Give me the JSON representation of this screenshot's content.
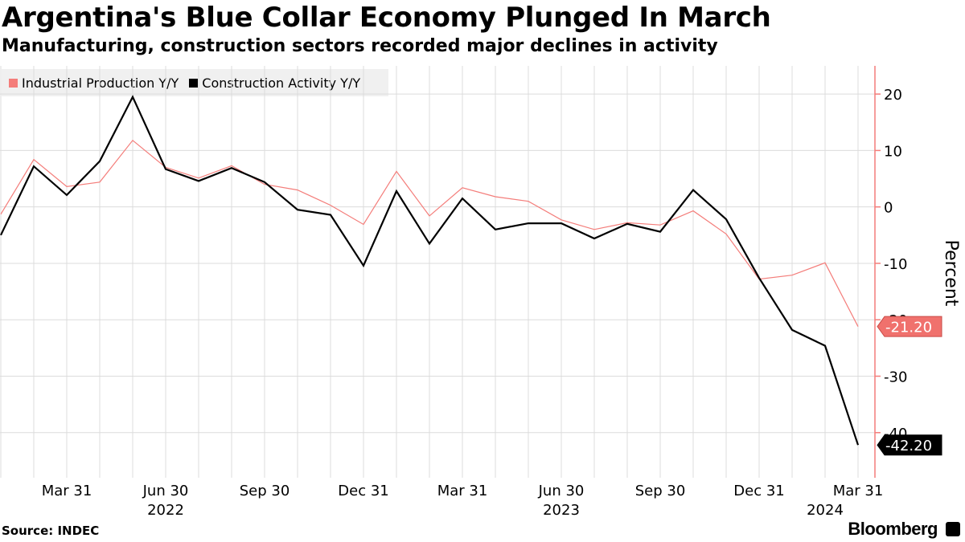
{
  "header": {
    "title": "Argentina's Blue Collar Economy Plunged In March",
    "subtitle": "Manufacturing, construction sectors recorded major declines in activity"
  },
  "footer": {
    "source": "Source: INDEC",
    "brand": "Bloomberg"
  },
  "colors": {
    "industrial": "#f47d7a",
    "construction": "#000000",
    "grid": "#dcdcdc",
    "axis": "#f47d7a"
  },
  "chart_data": {
    "type": "line",
    "title": "Argentina's Blue Collar Economy Plunged In March",
    "ylabel": "Percent",
    "xlabel": "",
    "ylim": [
      -48,
      25
    ],
    "yticks": [
      20,
      10,
      0,
      -10,
      -20,
      -30,
      -40
    ],
    "grid": true,
    "legend_position": "top-left",
    "x": [
      "2022-01",
      "2022-02",
      "2022-03",
      "2022-04",
      "2022-05",
      "2022-06",
      "2022-07",
      "2022-08",
      "2022-09",
      "2022-10",
      "2022-11",
      "2022-12",
      "2023-01",
      "2023-02",
      "2023-03",
      "2023-04",
      "2023-05",
      "2023-06",
      "2023-07",
      "2023-08",
      "2023-09",
      "2023-10",
      "2023-11",
      "2023-12",
      "2024-01",
      "2024-02",
      "2024-03"
    ],
    "x_tick_labels": [
      {
        "label": "Mar 31",
        "index": 2
      },
      {
        "label": "Jun 30",
        "index": 5
      },
      {
        "label": "Sep 30",
        "index": 8
      },
      {
        "label": "Dec 31",
        "index": 11
      },
      {
        "label": "Mar 31",
        "index": 14
      },
      {
        "label": "Jun 30",
        "index": 17
      },
      {
        "label": "Sep 30",
        "index": 20
      },
      {
        "label": "Dec 31",
        "index": 23
      },
      {
        "label": "Mar 31",
        "index": 26
      }
    ],
    "year_labels": [
      {
        "label": "2022",
        "index": 5
      },
      {
        "label": "2023",
        "index": 17
      },
      {
        "label": "2024",
        "index": 25
      }
    ],
    "series": [
      {
        "name": "Industrial Production Y/Y",
        "color": "#f47d7a",
        "values": [
          -1.3,
          8.4,
          3.6,
          4.4,
          11.8,
          7.0,
          5.1,
          7.3,
          4.0,
          3.0,
          0.3,
          -3.1,
          6.3,
          -1.6,
          3.4,
          1.8,
          1.0,
          -2.3,
          -4.0,
          -2.8,
          -3.2,
          -0.7,
          -4.8,
          -12.8,
          -12.1,
          -9.9,
          -21.2
        ],
        "end_label": "-21.20"
      },
      {
        "name": "Construction Activity Y/Y",
        "color": "#000000",
        "values": [
          -5.0,
          7.2,
          2.1,
          8.1,
          19.5,
          6.7,
          4.6,
          6.9,
          4.4,
          -0.5,
          -1.4,
          -10.4,
          2.8,
          -6.5,
          1.5,
          -4.0,
          -2.9,
          -2.9,
          -5.6,
          -3.0,
          -4.4,
          3.0,
          -2.2,
          -12.6,
          -21.8,
          -24.6,
          -42.2
        ],
        "end_label": "-42.20"
      }
    ]
  }
}
